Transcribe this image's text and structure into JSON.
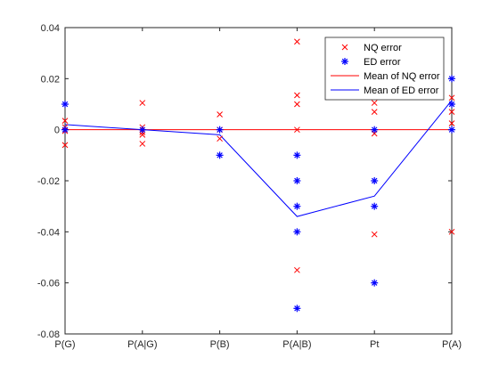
{
  "chart_data": {
    "type": "scatter",
    "categories": [
      "P(G)",
      "P(A|G)",
      "P(B)",
      "P(A|B)",
      "Pt",
      "P(A)"
    ],
    "ylim": [
      -0.08,
      0.04
    ],
    "yticks": [
      -0.08,
      -0.06,
      -0.04,
      -0.02,
      0,
      0.02,
      0.04
    ],
    "ytick_labels": [
      "-0.08",
      "-0.06",
      "-0.04",
      "-0.02",
      "0",
      "0.02",
      "0.04"
    ],
    "grid": false,
    "legend_position": "top-right",
    "series": [
      {
        "name": "NQ error",
        "kind": "marker-x",
        "color": "#ff0000",
        "points": [
          [
            0,
            0.0035
          ],
          [
            0,
            0.001
          ],
          [
            0,
            -0.0005
          ],
          [
            0,
            -0.006
          ],
          [
            1,
            0.0105
          ],
          [
            1,
            0.001
          ],
          [
            1,
            -0.001
          ],
          [
            1,
            -0.002
          ],
          [
            1,
            -0.0055
          ],
          [
            2,
            0.006
          ],
          [
            2,
            0.0
          ],
          [
            2,
            -0.0035
          ],
          [
            3,
            0.0345
          ],
          [
            3,
            0.0135
          ],
          [
            3,
            0.01
          ],
          [
            3,
            0.0
          ],
          [
            3,
            -0.055
          ],
          [
            4,
            0.0105
          ],
          [
            4,
            0.007
          ],
          [
            4,
            -0.0015
          ],
          [
            4,
            -0.041
          ],
          [
            5,
            0.0125
          ],
          [
            5,
            0.007
          ],
          [
            5,
            0.0025
          ],
          [
            5,
            -0.04
          ]
        ]
      },
      {
        "name": "ED error",
        "kind": "marker-asterisk",
        "color": "#0000ff",
        "points": [
          [
            0,
            0.01
          ],
          [
            0,
            0.0
          ],
          [
            1,
            0.0
          ],
          [
            2,
            0.0
          ],
          [
            2,
            -0.01
          ],
          [
            3,
            -0.01
          ],
          [
            3,
            -0.02
          ],
          [
            3,
            -0.03
          ],
          [
            3,
            -0.04
          ],
          [
            3,
            -0.07
          ],
          [
            4,
            0.0
          ],
          [
            4,
            -0.02
          ],
          [
            4,
            -0.03
          ],
          [
            4,
            -0.06
          ],
          [
            5,
            0.02
          ],
          [
            5,
            0.01
          ],
          [
            5,
            0.0
          ]
        ]
      },
      {
        "name": "Mean of NQ error",
        "kind": "line",
        "color": "#ff0000",
        "values": [
          0,
          0,
          0,
          0,
          0,
          0
        ]
      },
      {
        "name": "Mean of ED error",
        "kind": "line",
        "color": "#0000ff",
        "values": [
          0.002,
          0.0,
          -0.002,
          -0.034,
          -0.026,
          0.0115
        ]
      }
    ]
  }
}
